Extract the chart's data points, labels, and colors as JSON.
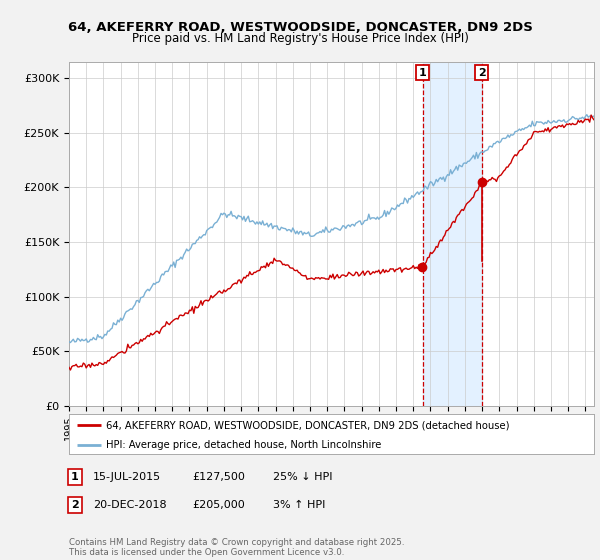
{
  "title1": "64, AKEFERRY ROAD, WESTWOODSIDE, DONCASTER, DN9 2DS",
  "title2": "Price paid vs. HM Land Registry's House Price Index (HPI)",
  "ylabel_ticks": [
    "£0",
    "£50K",
    "£100K",
    "£150K",
    "£200K",
    "£250K",
    "£300K"
  ],
  "ytick_vals": [
    0,
    50000,
    100000,
    150000,
    200000,
    250000,
    300000
  ],
  "ylim": [
    0,
    315000
  ],
  "xlim_start": 1995.0,
  "xlim_end": 2025.5,
  "sale1_date": 2015.54,
  "sale1_price": 127500,
  "sale1_label": "1",
  "sale2_date": 2018.97,
  "sale2_price": 205000,
  "sale2_label": "2",
  "line_color_property": "#cc0000",
  "line_color_hpi": "#7ab0d4",
  "shade_color": "#ddeeff",
  "dashed_color": "#cc0000",
  "legend_label1": "64, AKEFERRY ROAD, WESTWOODSIDE, DONCASTER, DN9 2DS (detached house)",
  "legend_label2": "HPI: Average price, detached house, North Lincolnshire",
  "sale1_text": "15-JUL-2015",
  "sale1_price_str": "£127,500",
  "sale1_hpi": "25% ↓ HPI",
  "sale2_text": "20-DEC-2018",
  "sale2_price_str": "£205,000",
  "sale2_hpi": "3% ↑ HPI",
  "footer": "Contains HM Land Registry data © Crown copyright and database right 2025.\nThis data is licensed under the Open Government Licence v3.0.",
  "bg_color": "#f2f2f2",
  "plot_bg": "#ffffff"
}
